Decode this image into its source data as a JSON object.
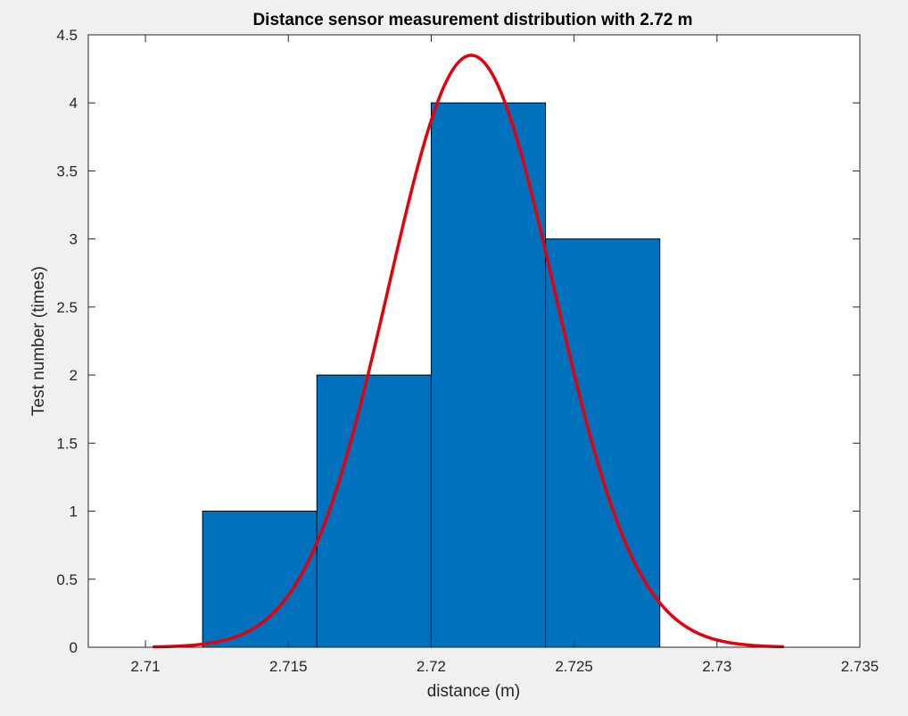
{
  "chart_data": {
    "type": "bar",
    "title": "Distance sensor measurement distribution with 2.72 m",
    "xlabel": "distance (m)",
    "ylabel": "Test number (times)",
    "xlim": [
      2.708,
      2.735
    ],
    "ylim": [
      0,
      4.5
    ],
    "xticks": [
      2.71,
      2.715,
      2.72,
      2.725,
      2.73,
      2.735
    ],
    "xtick_labels": [
      "2.71",
      "2.715",
      "2.72",
      "2.725",
      "2.73",
      "2.735"
    ],
    "yticks": [
      0,
      0.5,
      1,
      1.5,
      2,
      2.5,
      3,
      3.5,
      4,
      4.5
    ],
    "ytick_labels": [
      "0",
      "0.5",
      "1",
      "1.5",
      "2",
      "2.5",
      "3",
      "3.5",
      "4",
      "4.5"
    ],
    "bins": [
      {
        "x0": 2.712,
        "x1": 2.716,
        "count": 1
      },
      {
        "x0": 2.716,
        "x1": 2.72,
        "count": 2
      },
      {
        "x0": 2.72,
        "x1": 2.724,
        "count": 4
      },
      {
        "x0": 2.724,
        "x1": 2.728,
        "count": 3
      }
    ],
    "fit_curve": {
      "type": "normal",
      "mean": 2.7214,
      "std": 0.0029,
      "peak": 4.35,
      "x_range": [
        2.7103,
        2.7323
      ]
    },
    "grid": false,
    "legend": "none",
    "colors": {
      "bar_fill": "#0072bd",
      "bar_edge": "#000000",
      "curve": "#e6000b",
      "plot_background": "#ffffff",
      "figure_background": "#f0f0f0",
      "axis": "#262626"
    }
  }
}
